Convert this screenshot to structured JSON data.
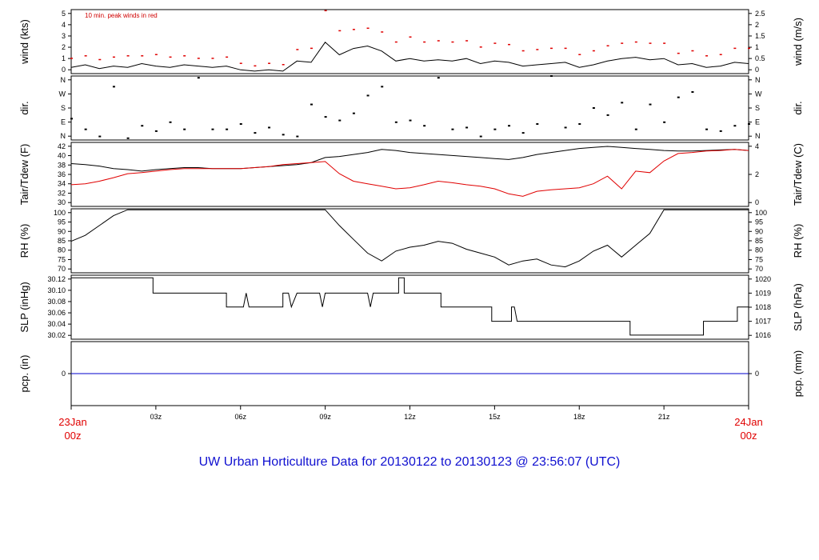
{
  "title": "UW Urban Horticulture Data for 20130122  to  20130123 @ 23:56:07  (UTC)",
  "colors": {
    "primary": "#000000",
    "secondary": "#e00000",
    "precip": "#0000cc",
    "title": "#1010d0"
  },
  "x_axis": {
    "start_date": "23Jan",
    "start_time": "00z",
    "end_date": "24Jan",
    "end_time": "00z",
    "ticks": [
      "03z",
      "06z",
      "09z",
      "12z",
      "15z",
      "18z",
      "21z"
    ]
  },
  "chart_data": [
    {
      "type": "line",
      "name": "wind",
      "ylabel_left": "wind (kts)",
      "ylabel_right": "wind (m/s)",
      "ylim": [
        0,
        5.1
      ],
      "left_ticks": [
        "0",
        "1",
        "2",
        "3",
        "4",
        "5"
      ],
      "right_ticks": [
        "0",
        "0.5",
        "1",
        "1.5",
        "2",
        "2.5"
      ],
      "annotation": "10 min. peak winds in red",
      "x_hours": [
        0,
        0.5,
        1,
        1.5,
        2,
        2.5,
        3,
        3.5,
        4,
        4.5,
        5,
        5.5,
        6,
        6.5,
        7,
        7.5,
        8,
        8.5,
        9,
        9.5,
        10,
        10.5,
        11,
        11.5,
        12,
        12.5,
        13,
        13.5,
        14,
        14.5,
        15,
        15.5,
        16,
        16.5,
        17,
        17.5,
        18,
        18.5,
        19,
        19.5,
        20,
        20.5,
        21,
        21.5,
        22,
        22.5,
        23,
        23.5,
        24
      ],
      "series": [
        {
          "values": [
            0.5,
            0.7,
            0.4,
            0.6,
            0.5,
            0.8,
            0.6,
            0.5,
            0.7,
            0.6,
            0.5,
            0.6,
            0.3,
            0.2,
            0.3,
            0.2,
            1.0,
            0.9,
            2.5,
            1.5,
            2.0,
            2.2,
            1.8,
            1.0,
            1.2,
            1.0,
            1.1,
            1.0,
            1.2,
            0.8,
            1.0,
            0.9,
            0.6,
            0.7,
            0.8,
            0.9,
            0.5,
            0.7,
            1.0,
            1.2,
            1.3,
            1.1,
            1.2,
            0.7,
            0.8,
            0.5,
            0.6,
            0.9,
            0.8
          ]
        },
        {
          "values": [
            1.2,
            1.4,
            1.1,
            1.3,
            1.4,
            1.4,
            1.5,
            1.3,
            1.4,
            1.2,
            1.2,
            1.3,
            0.8,
            0.6,
            0.8,
            0.7,
            1.9,
            2.0,
            5.0,
            3.4,
            3.5,
            3.6,
            3.3,
            2.5,
            2.9,
            2.5,
            2.6,
            2.5,
            2.6,
            2.1,
            2.4,
            2.3,
            1.8,
            1.9,
            2.0,
            2.0,
            1.5,
            1.8,
            2.2,
            2.4,
            2.5,
            2.4,
            2.4,
            1.6,
            1.8,
            1.4,
            1.5,
            2.0,
            2.0
          ]
        }
      ]
    },
    {
      "type": "scatter",
      "name": "dir",
      "ylabel_left": "dir.",
      "ylabel_right": "dir.",
      "ylim": [
        0,
        360
      ],
      "left_ticks": [
        "N",
        "E",
        "S",
        "W",
        "N"
      ],
      "right_ticks": [
        "N",
        "E",
        "S",
        "W",
        "N"
      ],
      "x_hours": [
        0,
        0.5,
        1,
        1.5,
        2,
        2.5,
        3,
        3.5,
        4,
        4.5,
        5,
        5.5,
        6,
        6.5,
        7,
        7.5,
        8,
        8.5,
        9,
        9.5,
        10,
        10.5,
        11,
        11.5,
        12,
        12.5,
        13,
        13.5,
        14,
        14.5,
        15,
        15.5,
        16,
        16.5,
        17,
        17.5,
        18,
        18.5,
        19,
        19.5,
        20,
        20.5,
        21,
        21.5,
        22,
        22.5,
        23,
        23.5,
        24
      ],
      "values": [
        120,
        60,
        20,
        300,
        10,
        80,
        50,
        100,
        60,
        350,
        60,
        60,
        90,
        40,
        70,
        30,
        20,
        200,
        130,
        110,
        150,
        250,
        300,
        100,
        110,
        80,
        350,
        60,
        70,
        20,
        60,
        80,
        40,
        90,
        360,
        70,
        90,
        180,
        140,
        210,
        60,
        200,
        100,
        240,
        270,
        60,
        50,
        80,
        90
      ]
    },
    {
      "type": "line",
      "name": "temperature",
      "ylabel_left": "Tair/Tdew (F)",
      "ylabel_right": "Tair/Tdew (C)",
      "ylim": [
        29.5,
        42.2
      ],
      "left_ticks": [
        "30",
        "32",
        "34",
        "36",
        "38",
        "40",
        "42"
      ],
      "right_ticks": [
        "0",
        "2",
        "4"
      ],
      "x_hours": [
        0,
        0.5,
        1,
        1.5,
        2,
        2.5,
        3,
        3.5,
        4,
        4.5,
        5,
        5.5,
        6,
        6.5,
        7,
        7.5,
        8,
        8.5,
        9,
        9.5,
        10,
        10.5,
        11,
        11.5,
        12,
        12.5,
        13,
        13.5,
        14,
        14.5,
        15,
        15.5,
        16,
        16.5,
        17,
        17.5,
        18,
        18.5,
        19,
        19.5,
        20,
        20.5,
        21,
        21.5,
        22,
        22.5,
        23,
        23.5,
        24
      ],
      "series": [
        {
          "values": [
            38.0,
            37.8,
            37.5,
            37.0,
            36.8,
            36.5,
            36.8,
            37.0,
            37.2,
            37.2,
            37.0,
            37.0,
            37.0,
            37.2,
            37.4,
            37.6,
            37.8,
            38.2,
            39.2,
            39.4,
            39.8,
            40.2,
            40.8,
            40.6,
            40.2,
            40.0,
            39.8,
            39.6,
            39.4,
            39.2,
            39.0,
            38.8,
            39.2,
            39.8,
            40.2,
            40.6,
            41.0,
            41.2,
            41.4,
            41.2,
            41.0,
            40.8,
            40.6,
            40.5,
            40.5,
            40.6,
            40.7,
            40.8,
            40.6
          ]
        },
        {
          "values": [
            33.8,
            34.0,
            34.5,
            35.2,
            36.0,
            36.2,
            36.5,
            36.8,
            37.0,
            37.0,
            37.0,
            37.0,
            37.0,
            37.2,
            37.4,
            37.8,
            38.0,
            38.2,
            38.4,
            36.0,
            34.5,
            34.0,
            33.5,
            33.0,
            33.2,
            33.8,
            34.5,
            34.2,
            33.8,
            33.5,
            33.0,
            32.0,
            31.5,
            32.5,
            32.8,
            33.0,
            33.2,
            34.0,
            35.5,
            33.0,
            36.5,
            36.2,
            38.5,
            40.0,
            40.2,
            40.5,
            40.6,
            40.8,
            40.6
          ]
        }
      ]
    },
    {
      "type": "line",
      "name": "rh",
      "ylabel_left": "RH (%)",
      "ylabel_right": "RH (%)",
      "ylim": [
        68,
        100.5
      ],
      "left_ticks": [
        "70",
        "75",
        "80",
        "85",
        "90",
        "95",
        "100"
      ],
      "right_ticks": [
        "70",
        "75",
        "80",
        "85",
        "90",
        "95",
        "100"
      ],
      "x_hours": [
        0,
        0.5,
        1,
        1.5,
        2,
        2.5,
        3,
        3.5,
        4,
        4.5,
        5,
        5.5,
        6,
        6.5,
        7,
        7.5,
        8,
        8.5,
        9,
        9.5,
        10,
        10.5,
        11,
        11.5,
        12,
        12.5,
        13,
        13.5,
        14,
        14.5,
        15,
        15.5,
        16,
        16.5,
        17,
        17.5,
        18,
        18.5,
        19,
        19.5,
        20,
        20.5,
        21,
        21.5,
        22,
        22.5,
        23,
        23.5,
        24
      ],
      "values": [
        84,
        87,
        92,
        97,
        100,
        100,
        100,
        100,
        100,
        100,
        100,
        100,
        100,
        100,
        100,
        100,
        100,
        100,
        100,
        92,
        85,
        78,
        74,
        79,
        81,
        82,
        84,
        83,
        80,
        78,
        76,
        72,
        74,
        75,
        72,
        71,
        74,
        79,
        82,
        76,
        82,
        88,
        100,
        100,
        100,
        100,
        100,
        100,
        100
      ]
    },
    {
      "type": "line",
      "name": "slp",
      "ylabel_left": "SLP (inHg)",
      "ylabel_right": "SLP (hPa)",
      "ylim": [
        30.0,
        30.125
      ],
      "left_ticks": [
        "30.02",
        "30.04",
        "30.06",
        "30.08",
        "30.10",
        "30.12"
      ],
      "right_ticks": [
        "1016",
        "1017",
        "1018",
        "1019",
        "1020"
      ],
      "x_hours": [
        0,
        2.9,
        2.9,
        5.5,
        5.5,
        6.1,
        6.2,
        6.3,
        6.3,
        7.5,
        7.5,
        7.7,
        7.8,
        8.0,
        8.1,
        8.8,
        8.9,
        9.0,
        9.0,
        10.5,
        10.6,
        10.7,
        10.7,
        11.6,
        11.6,
        11.8,
        11.8,
        13.1,
        13.1,
        14.9,
        14.9,
        15.6,
        15.6,
        15.7,
        15.8,
        19.8,
        19.8,
        22.4,
        22.4,
        23.6,
        23.6,
        24
      ],
      "values": [
        30.12,
        30.12,
        30.09,
        30.09,
        30.063,
        30.063,
        30.09,
        30.063,
        30.063,
        30.063,
        30.09,
        30.09,
        30.063,
        30.09,
        30.09,
        30.09,
        30.063,
        30.09,
        30.09,
        30.09,
        30.063,
        30.09,
        30.09,
        30.09,
        30.12,
        30.12,
        30.09,
        30.09,
        30.063,
        30.063,
        30.035,
        30.035,
        30.063,
        30.063,
        30.035,
        30.035,
        30.008,
        30.008,
        30.035,
        30.035,
        30.063,
        30.063
      ]
    },
    {
      "type": "line",
      "name": "precip",
      "ylabel_left": "pcp. (in)",
      "ylabel_right": "pcp. (mm)",
      "ylim": [
        -0.5,
        0.5
      ],
      "left_ticks": [
        "0"
      ],
      "right_ticks": [
        "0"
      ],
      "x_hours": [
        0,
        24
      ],
      "values": [
        0,
        0
      ]
    }
  ]
}
